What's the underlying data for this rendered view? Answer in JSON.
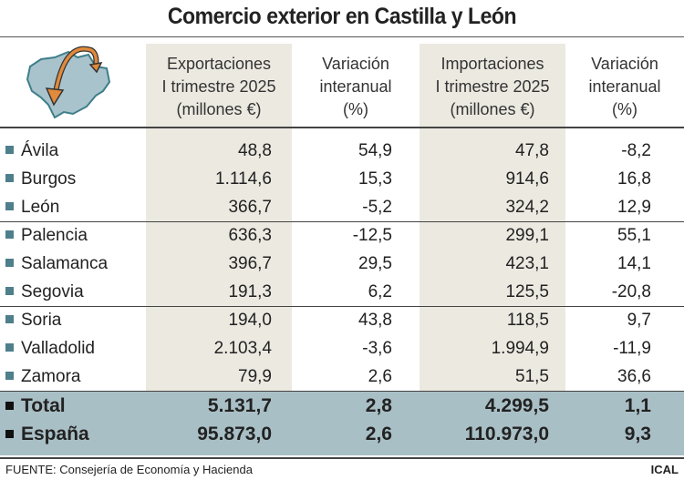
{
  "title": "Comercio exterior en Castilla y León",
  "headers": [
    [
      "Exportaciones",
      "I trimestre 2025",
      "(millones €)"
    ],
    [
      "Variación",
      "interanual",
      "(%)"
    ],
    [
      "Importaciones",
      "I trimestre 2025",
      "(millones €)"
    ],
    [
      "Variación",
      "interanual",
      "(%)"
    ]
  ],
  "rows": [
    {
      "name": "Ávila",
      "v": [
        "48,8",
        "54,9",
        "47,8",
        "-8,2"
      ]
    },
    {
      "name": "Burgos",
      "v": [
        "1.114,6",
        "15,3",
        "914,6",
        "16,8"
      ]
    },
    {
      "name": "León",
      "v": [
        "366,7",
        "-5,2",
        "324,2",
        "12,9"
      ]
    },
    {
      "name": "Palencia",
      "v": [
        "636,3",
        "-12,5",
        "299,1",
        "55,1"
      ]
    },
    {
      "name": "Salamanca",
      "v": [
        "396,7",
        "29,5",
        "423,1",
        "14,1"
      ]
    },
    {
      "name": "Segovia",
      "v": [
        "191,3",
        "6,2",
        "125,5",
        "-20,8"
      ]
    },
    {
      "name": "Soria",
      "v": [
        "194,0",
        "43,8",
        "118,5",
        "9,7"
      ]
    },
    {
      "name": "Valladolid",
      "v": [
        "2.103,4",
        "-3,6",
        "1.994,9",
        "-11,9"
      ]
    },
    {
      "name": "Zamora",
      "v": [
        "79,9",
        "2,6",
        "51,5",
        "36,6"
      ]
    }
  ],
  "totals": [
    {
      "name": "Total",
      "v": [
        "5.131,7",
        "2,8",
        "4.299,5",
        "1,1"
      ]
    },
    {
      "name": "España",
      "v": [
        "95.873,0",
        "2,6",
        "110.973,0",
        "9,3"
      ]
    }
  ],
  "footer": {
    "source": "FUENTE: Consejería de Economía y Hacienda",
    "credit": "ICAL"
  },
  "colors": {
    "shade": "#ece9e1",
    "band": "#a9bfc6",
    "bullet": "#4e7f8b",
    "arrow": "#e08a3c",
    "map": "#a9c3cc"
  },
  "icons": [
    "castilla-y-leon-map-icon",
    "exchange-arrow-icon"
  ]
}
